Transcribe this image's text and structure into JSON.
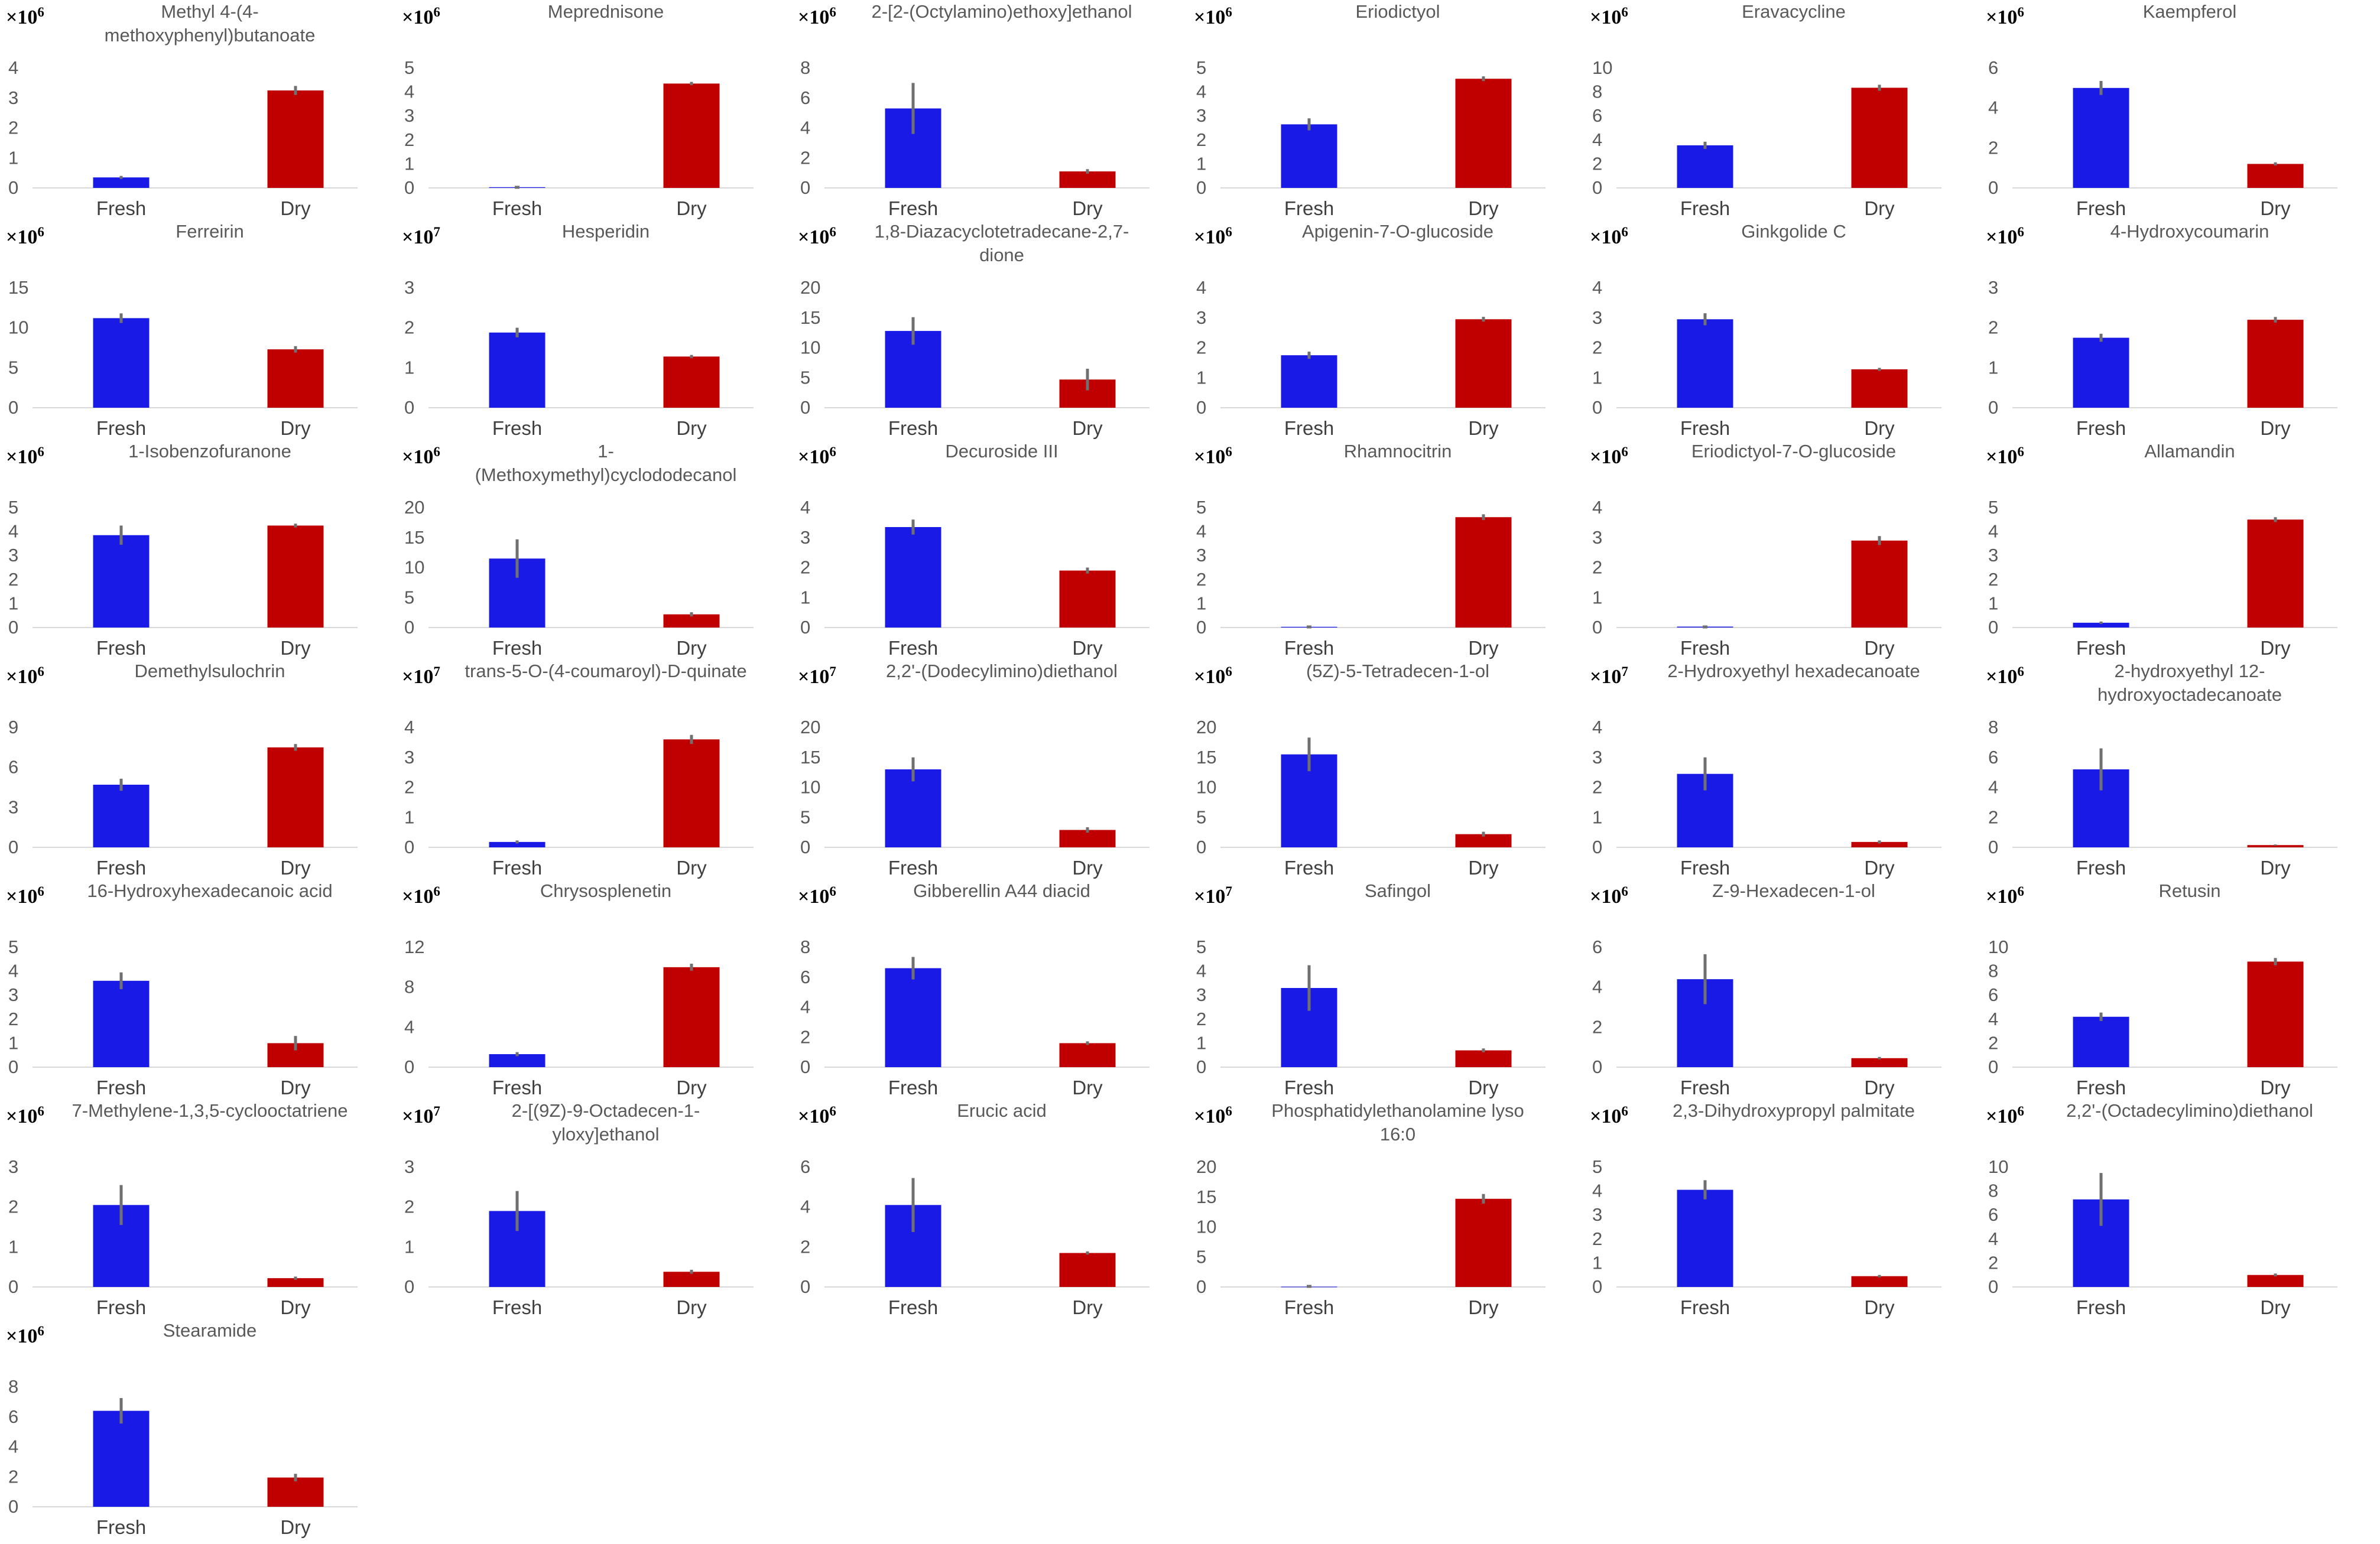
{
  "colors": {
    "fresh": "#1a1ae6",
    "dry": "#c00000",
    "error_bar": "#707070",
    "axis": "#d9d9d9"
  },
  "chart_data": [
    {
      "type": "bar",
      "title": [
        "Methyl 4-(4-",
        "methoxyphenyl)butanoate"
      ],
      "multiplier": "×10",
      "exponent": "6",
      "categories": [
        "Fresh",
        "Dry"
      ],
      "values": [
        0.35,
        3.25
      ],
      "errors": [
        0.05,
        0.15
      ],
      "yticks": [
        0,
        1,
        2,
        3,
        4
      ],
      "ylim": [
        0,
        4
      ]
    },
    {
      "type": "bar",
      "title": [
        "Meprednisone"
      ],
      "multiplier": "×10",
      "exponent": "6",
      "categories": [
        "Fresh",
        "Dry"
      ],
      "values": [
        0.03,
        4.35
      ],
      "errors": [
        0,
        0.07
      ],
      "yticks": [
        0,
        1,
        2,
        3,
        4,
        5
      ],
      "ylim": [
        0,
        5
      ]
    },
    {
      "type": "bar",
      "title": [
        "2-[2-(Octylamino)ethoxy]ethanol"
      ],
      "multiplier": "×10",
      "exponent": "6",
      "categories": [
        "Fresh",
        "Dry"
      ],
      "values": [
        5.3,
        1.1
      ],
      "errors": [
        1.7,
        0.15
      ],
      "yticks": [
        0,
        2,
        4,
        6,
        8
      ],
      "ylim": [
        0,
        8
      ]
    },
    {
      "type": "bar",
      "title": [
        "Eriodictyol"
      ],
      "multiplier": "×10",
      "exponent": "6",
      "categories": [
        "Fresh",
        "Dry"
      ],
      "values": [
        2.65,
        4.55
      ],
      "errors": [
        0.25,
        0.1
      ],
      "yticks": [
        0,
        1,
        2,
        3,
        4,
        5
      ],
      "ylim": [
        0,
        5
      ]
    },
    {
      "type": "bar",
      "title": [
        "Eravacycline"
      ],
      "multiplier": "×10",
      "exponent": "6",
      "categories": [
        "Fresh",
        "Dry"
      ],
      "values": [
        3.55,
        8.35
      ],
      "errors": [
        0.3,
        0.25
      ],
      "yticks": [
        0,
        2,
        4,
        6,
        8,
        10
      ],
      "ylim": [
        0,
        10
      ]
    },
    {
      "type": "bar",
      "title": [
        "Kaempferol"
      ],
      "multiplier": "×10",
      "exponent": "6",
      "categories": [
        "Fresh",
        "Dry"
      ],
      "values": [
        5.0,
        1.2
      ],
      "errors": [
        0.35,
        0.08
      ],
      "yticks": [
        0,
        2,
        4,
        6
      ],
      "ylim": [
        0,
        6
      ]
    },
    {
      "type": "bar",
      "title": [
        "Ferreirin"
      ],
      "multiplier": "×10",
      "exponent": "6",
      "categories": [
        "Fresh",
        "Dry"
      ],
      "values": [
        11.2,
        7.3
      ],
      "errors": [
        0.6,
        0.4
      ],
      "yticks": [
        0,
        5,
        10,
        15
      ],
      "ylim": [
        0,
        15
      ]
    },
    {
      "type": "bar",
      "title": [
        "Hesperidin"
      ],
      "multiplier": "×10",
      "exponent": "7",
      "categories": [
        "Fresh",
        "Dry"
      ],
      "values": [
        1.88,
        1.28
      ],
      "errors": [
        0.12,
        0.04
      ],
      "yticks": [
        0,
        1,
        2,
        3
      ],
      "ylim": [
        0,
        3
      ]
    },
    {
      "type": "bar",
      "title": [
        "1,8-Diazacyclotetradecane-2,7-",
        "dione"
      ],
      "multiplier": "×10",
      "exponent": "6",
      "categories": [
        "Fresh",
        "Dry"
      ],
      "values": [
        12.8,
        4.7
      ],
      "errors": [
        2.3,
        1.8
      ],
      "yticks": [
        0,
        5,
        10,
        15,
        20
      ],
      "ylim": [
        0,
        20
      ]
    },
    {
      "type": "bar",
      "title": [
        "Apigenin-7-O-glucoside"
      ],
      "multiplier": "×10",
      "exponent": "6",
      "categories": [
        "Fresh",
        "Dry"
      ],
      "values": [
        1.75,
        2.95
      ],
      "errors": [
        0.12,
        0.08
      ],
      "yticks": [
        0,
        1,
        2,
        3,
        4
      ],
      "ylim": [
        0,
        4
      ]
    },
    {
      "type": "bar",
      "title": [
        "Ginkgolide C"
      ],
      "multiplier": "×10",
      "exponent": "6",
      "categories": [
        "Fresh",
        "Dry"
      ],
      "values": [
        2.95,
        1.28
      ],
      "errors": [
        0.2,
        0.05
      ],
      "yticks": [
        0,
        1,
        2,
        3,
        4
      ],
      "ylim": [
        0,
        4
      ]
    },
    {
      "type": "bar",
      "title": [
        "4-Hydroxycoumarin"
      ],
      "multiplier": "×10",
      "exponent": "6",
      "categories": [
        "Fresh",
        "Dry"
      ],
      "values": [
        1.75,
        2.2
      ],
      "errors": [
        0.1,
        0.07
      ],
      "yticks": [
        0,
        1,
        2,
        3
      ],
      "ylim": [
        0,
        3
      ]
    },
    {
      "type": "bar",
      "title": [
        "1-Isobenzofuranone"
      ],
      "multiplier": "×10",
      "exponent": "6",
      "categories": [
        "Fresh",
        "Dry"
      ],
      "values": [
        3.85,
        4.25
      ],
      "errors": [
        0.4,
        0.08
      ],
      "yticks": [
        0,
        1,
        2,
        3,
        4,
        5
      ],
      "ylim": [
        0,
        5
      ]
    },
    {
      "type": "bar",
      "title": [
        "1-",
        "(Methoxymethyl)cyclododecanol"
      ],
      "multiplier": "×10",
      "exponent": "6",
      "categories": [
        "Fresh",
        "Dry"
      ],
      "values": [
        11.5,
        2.2
      ],
      "errors": [
        3.2,
        0.35
      ],
      "yticks": [
        0,
        5,
        10,
        15,
        20
      ],
      "ylim": [
        0,
        20
      ]
    },
    {
      "type": "bar",
      "title": [
        "Decuroside III"
      ],
      "multiplier": "×10",
      "exponent": "6",
      "categories": [
        "Fresh",
        "Dry"
      ],
      "values": [
        3.35,
        1.9
      ],
      "errors": [
        0.25,
        0.1
      ],
      "yticks": [
        0,
        1,
        2,
        3,
        4
      ],
      "ylim": [
        0,
        4
      ]
    },
    {
      "type": "bar",
      "title": [
        "Rhamnocitrin"
      ],
      "multiplier": "×10",
      "exponent": "6",
      "categories": [
        "Fresh",
        "Dry"
      ],
      "values": [
        0.03,
        4.6
      ],
      "errors": [
        0,
        0.12
      ],
      "yticks": [
        0,
        1,
        2,
        3,
        4,
        5
      ],
      "ylim": [
        0,
        5
      ]
    },
    {
      "type": "bar",
      "title": [
        "Eriodictyol-7-O-glucoside"
      ],
      "multiplier": "×10",
      "exponent": "6",
      "categories": [
        "Fresh",
        "Dry"
      ],
      "values": [
        0.03,
        2.9
      ],
      "errors": [
        0,
        0.15
      ],
      "yticks": [
        0,
        1,
        2,
        3,
        4
      ],
      "ylim": [
        0,
        4
      ]
    },
    {
      "type": "bar",
      "title": [
        "Allamandin"
      ],
      "multiplier": "×10",
      "exponent": "6",
      "categories": [
        "Fresh",
        "Dry"
      ],
      "values": [
        0.2,
        4.5
      ],
      "errors": [
        0.05,
        0.1
      ],
      "yticks": [
        0,
        1,
        2,
        3,
        4,
        5
      ],
      "ylim": [
        0,
        5
      ]
    },
    {
      "type": "bar",
      "title": [
        "Demethylsulochrin"
      ],
      "multiplier": "×10",
      "exponent": "6",
      "categories": [
        "Fresh",
        "Dry"
      ],
      "values": [
        4.7,
        7.5
      ],
      "errors": [
        0.45,
        0.25
      ],
      "yticks": [
        0,
        3,
        6,
        9
      ],
      "ylim": [
        0,
        9
      ]
    },
    {
      "type": "bar",
      "title": [
        "trans-5-O-(4-coumaroyl)-D-quinate"
      ],
      "multiplier": "×10",
      "exponent": "7",
      "categories": [
        "Fresh",
        "Dry"
      ],
      "values": [
        0.18,
        3.6
      ],
      "errors": [
        0.05,
        0.15
      ],
      "yticks": [
        0,
        1,
        2,
        3,
        4
      ],
      "ylim": [
        0,
        4
      ]
    },
    {
      "type": "bar",
      "title": [
        "2,2'-(Dodecylimino)diethanol"
      ],
      "multiplier": "×10",
      "exponent": "7",
      "categories": [
        "Fresh",
        "Dry"
      ],
      "values": [
        13.0,
        2.9
      ],
      "errors": [
        2.0,
        0.45
      ],
      "yticks": [
        0,
        5,
        10,
        15,
        20
      ],
      "ylim": [
        0,
        20
      ]
    },
    {
      "type": "bar",
      "title": [
        "(5Z)-5-Tetradecen-1-ol"
      ],
      "multiplier": "×10",
      "exponent": "6",
      "categories": [
        "Fresh",
        "Dry"
      ],
      "values": [
        15.5,
        2.2
      ],
      "errors": [
        2.8,
        0.4
      ],
      "yticks": [
        0,
        5,
        10,
        15,
        20
      ],
      "ylim": [
        0,
        20
      ]
    },
    {
      "type": "bar",
      "title": [
        "2-Hydroxyethyl hexadecanoate"
      ],
      "multiplier": "×10",
      "exponent": "7",
      "categories": [
        "Fresh",
        "Dry"
      ],
      "values": [
        2.45,
        0.18
      ],
      "errors": [
        0.55,
        0.05
      ],
      "yticks": [
        0,
        1,
        2,
        3,
        4
      ],
      "ylim": [
        0,
        4
      ]
    },
    {
      "type": "bar",
      "title": [
        "2-hydroxyethyl 12-",
        "hydroxyoctadecanoate"
      ],
      "multiplier": "×10",
      "exponent": "6",
      "categories": [
        "Fresh",
        "Dry"
      ],
      "values": [
        5.2,
        0.15
      ],
      "errors": [
        1.4,
        0.04
      ],
      "yticks": [
        0,
        2,
        4,
        6,
        8
      ],
      "ylim": [
        0,
        8
      ]
    },
    {
      "type": "bar",
      "title": [
        "16-Hydroxyhexadecanoic acid"
      ],
      "multiplier": "×10",
      "exponent": "6",
      "categories": [
        "Fresh",
        "Dry"
      ],
      "values": [
        3.6,
        1.0
      ],
      "errors": [
        0.35,
        0.3
      ],
      "yticks": [
        0,
        1,
        2,
        3,
        4,
        5
      ],
      "ylim": [
        0,
        5
      ]
    },
    {
      "type": "bar",
      "title": [
        "Chrysosplenetin"
      ],
      "multiplier": "×10",
      "exponent": "6",
      "categories": [
        "Fresh",
        "Dry"
      ],
      "values": [
        1.3,
        10.0
      ],
      "errors": [
        0.2,
        0.35
      ],
      "yticks": [
        0,
        4,
        8,
        12
      ],
      "ylim": [
        0,
        12
      ]
    },
    {
      "type": "bar",
      "title": [
        "Gibberellin A44 diacid"
      ],
      "multiplier": "×10",
      "exponent": "6",
      "categories": [
        "Fresh",
        "Dry"
      ],
      "values": [
        6.6,
        1.6
      ],
      "errors": [
        0.75,
        0.12
      ],
      "yticks": [
        0,
        2,
        4,
        6,
        8
      ],
      "ylim": [
        0,
        8
      ]
    },
    {
      "type": "bar",
      "title": [
        "Safingol"
      ],
      "multiplier": "×10",
      "exponent": "7",
      "categories": [
        "Fresh",
        "Dry"
      ],
      "values": [
        3.3,
        0.7
      ],
      "errors": [
        0.95,
        0.08
      ],
      "yticks": [
        0,
        1,
        2,
        3,
        4,
        5
      ],
      "ylim": [
        0,
        5
      ]
    },
    {
      "type": "bar",
      "title": [
        "Z-9-Hexadecen-1-ol"
      ],
      "multiplier": "×10",
      "exponent": "6",
      "categories": [
        "Fresh",
        "Dry"
      ],
      "values": [
        4.4,
        0.45
      ],
      "errors": [
        1.25,
        0.06
      ],
      "yticks": [
        0,
        2,
        4,
        6
      ],
      "ylim": [
        0,
        6
      ]
    },
    {
      "type": "bar",
      "title": [
        "Retusin"
      ],
      "multiplier": "×10",
      "exponent": "6",
      "categories": [
        "Fresh",
        "Dry"
      ],
      "values": [
        4.2,
        8.8
      ],
      "errors": [
        0.35,
        0.3
      ],
      "yticks": [
        0,
        2,
        4,
        6,
        8,
        10
      ],
      "ylim": [
        0,
        10
      ]
    },
    {
      "type": "bar",
      "title": [
        "7-Methylene-1,3,5-cyclooctatriene"
      ],
      "multiplier": "×10",
      "exponent": "6",
      "categories": [
        "Fresh",
        "Dry"
      ],
      "values": [
        2.05,
        0.22
      ],
      "errors": [
        0.5,
        0.04
      ],
      "yticks": [
        0,
        1,
        2,
        3
      ],
      "ylim": [
        0,
        3
      ]
    },
    {
      "type": "bar",
      "title": [
        "2-[(9Z)-9-Octadecen-1-",
        "yloxy]ethanol"
      ],
      "multiplier": "×10",
      "exponent": "7",
      "categories": [
        "Fresh",
        "Dry"
      ],
      "values": [
        1.9,
        0.38
      ],
      "errors": [
        0.5,
        0.05
      ],
      "yticks": [
        0,
        1,
        2,
        3
      ],
      "ylim": [
        0,
        3
      ]
    },
    {
      "type": "bar",
      "title": [
        "Erucic acid"
      ],
      "multiplier": "×10",
      "exponent": "6",
      "categories": [
        "Fresh",
        "Dry"
      ],
      "values": [
        4.1,
        1.7
      ],
      "errors": [
        1.35,
        0.08
      ],
      "yticks": [
        0,
        2,
        4,
        6
      ],
      "ylim": [
        0,
        6
      ]
    },
    {
      "type": "bar",
      "title": [
        "Phosphatidylethanolamine lyso",
        "16:0"
      ],
      "multiplier": "×10",
      "exponent": "6",
      "categories": [
        "Fresh",
        "Dry"
      ],
      "values": [
        0.05,
        14.7
      ],
      "errors": [
        0,
        0.8
      ],
      "yticks": [
        0,
        5,
        10,
        15,
        20
      ],
      "ylim": [
        0,
        20
      ]
    },
    {
      "type": "bar",
      "title": [
        "2,3-Dihydroxypropyl palmitate"
      ],
      "multiplier": "×10",
      "exponent": "6",
      "categories": [
        "Fresh",
        "Dry"
      ],
      "values": [
        4.05,
        0.45
      ],
      "errors": [
        0.4,
        0.05
      ],
      "yticks": [
        0,
        1,
        2,
        3,
        4,
        5
      ],
      "ylim": [
        0,
        5
      ]
    },
    {
      "type": "bar",
      "title": [
        "2,2'-(Octadecylimino)diethanol"
      ],
      "multiplier": "×10",
      "exponent": "6",
      "categories": [
        "Fresh",
        "Dry"
      ],
      "values": [
        7.3,
        1.0
      ],
      "errors": [
        2.2,
        0.12
      ],
      "yticks": [
        0,
        2,
        4,
        6,
        8,
        10
      ],
      "ylim": [
        0,
        10
      ]
    },
    {
      "type": "bar",
      "title": [
        "Stearamide"
      ],
      "multiplier": "×10",
      "exponent": "6",
      "categories": [
        "Fresh",
        "Dry"
      ],
      "values": [
        6.4,
        1.95
      ],
      "errors": [
        0.85,
        0.25
      ],
      "yticks": [
        0,
        2,
        4,
        6,
        8
      ],
      "ylim": [
        0,
        8
      ]
    }
  ]
}
